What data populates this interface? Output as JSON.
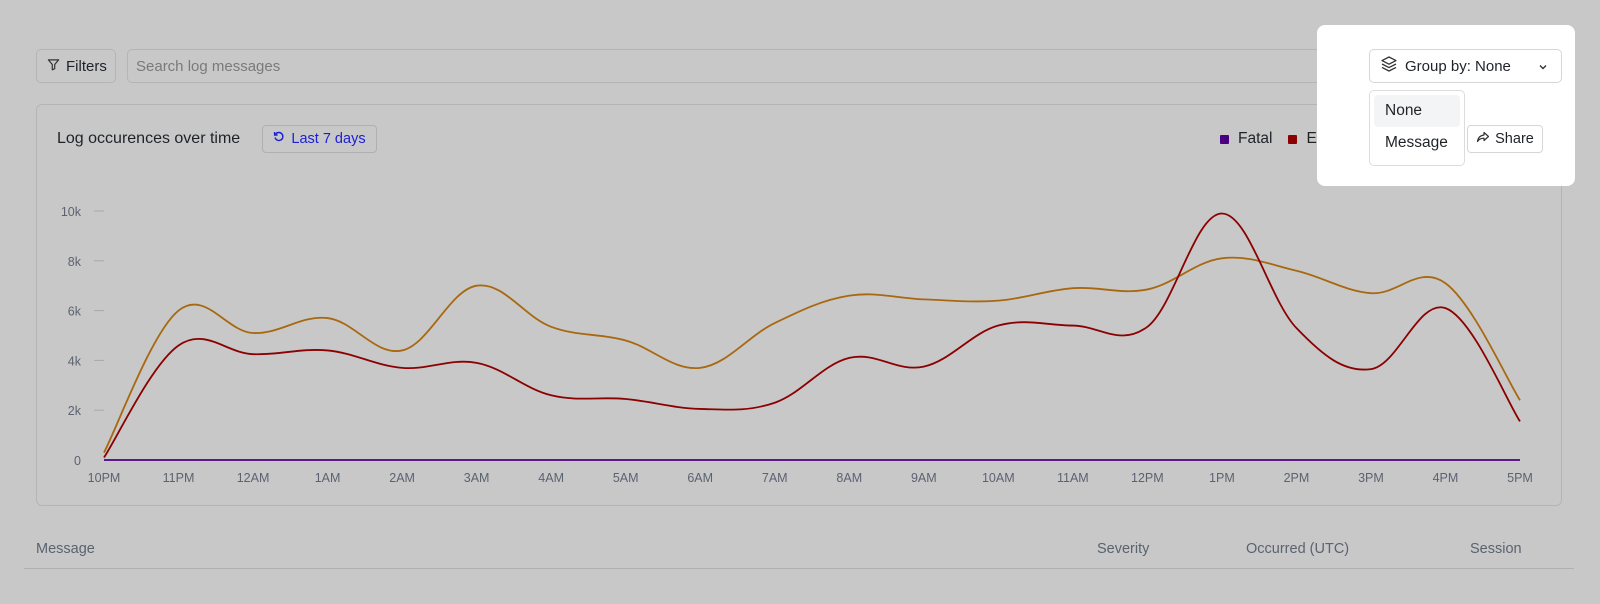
{
  "toolbar": {
    "filters_label": "Filters",
    "search_placeholder": "Search log messages",
    "group_by_label": "Group by: None",
    "group_options": [
      "None",
      "Message"
    ],
    "share_label": "Share"
  },
  "chart_header": {
    "title": "Log occurences over time",
    "range_label": "Last 7 days"
  },
  "legend": [
    {
      "label": "Fatal",
      "color": "#4b0082"
    },
    {
      "label": "Error",
      "color": "#8b0000"
    },
    {
      "label": "",
      "color": "#d4820e"
    }
  ],
  "chart_data": {
    "type": "line",
    "x": [
      "10PM",
      "11PM",
      "12AM",
      "1AM",
      "2AM",
      "3AM",
      "4AM",
      "5AM",
      "6AM",
      "7AM",
      "8AM",
      "9AM",
      "10AM",
      "11AM",
      "12PM",
      "1PM",
      "2PM",
      "3PM",
      "4PM",
      "5PM"
    ],
    "y_ticks": [
      "0",
      "2k",
      "4k",
      "6k",
      "8k",
      "10k"
    ],
    "ylim": [
      0,
      10000
    ],
    "series": [
      {
        "name": "Fatal",
        "color": "#4b0082",
        "values": [
          0,
          0,
          0,
          0,
          0,
          0,
          0,
          0,
          0,
          0,
          0,
          0,
          0,
          0,
          0,
          0,
          0,
          0,
          0,
          0
        ]
      },
      {
        "name": "Error",
        "color": "#8b0000",
        "values": [
          100,
          4600,
          4250,
          4400,
          3700,
          3900,
          2600,
          2450,
          2050,
          2300,
          4100,
          3750,
          5400,
          5400,
          5350,
          9900,
          5300,
          3650,
          6100,
          1550
        ]
      },
      {
        "name": "",
        "color": "#a8680f",
        "values": [
          300,
          6000,
          5100,
          5700,
          4400,
          7000,
          5350,
          4800,
          3700,
          5500,
          6600,
          6450,
          6400,
          6900,
          6850,
          8100,
          7600,
          6700,
          7100,
          2400
        ]
      }
    ]
  },
  "table": {
    "columns": [
      "Message",
      "Severity",
      "Occurred (UTC)",
      "Session"
    ]
  }
}
